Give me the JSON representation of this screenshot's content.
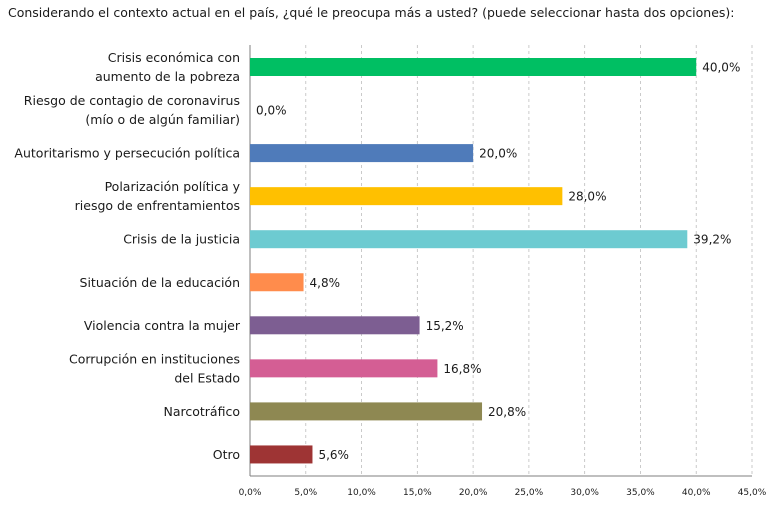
{
  "chart_data": {
    "type": "bar",
    "orientation": "horizontal",
    "title": "Considerando el contexto actual en el país, ¿qué le preocupa más a usted? (puede seleccionar hasta dos opciones):",
    "categories": [
      [
        "Crisis económica con",
        "aumento de la pobreza"
      ],
      [
        "Riesgo de contagio de coronavirus",
        "(mío o de algún familiar)"
      ],
      [
        "Autoritarismo y persecución política"
      ],
      [
        "Polarización política y",
        "riesgo de enfrentamientos"
      ],
      [
        "Crisis de la justicia"
      ],
      [
        "Situación de la educación"
      ],
      [
        "Violencia contra la mujer"
      ],
      [
        "Corrupción en instituciones",
        "del Estado"
      ],
      [
        "Narcotráfico"
      ],
      [
        "Otro"
      ]
    ],
    "values": [
      40.0,
      0.0,
      20.0,
      28.0,
      39.2,
      4.8,
      15.2,
      16.8,
      20.8,
      5.6
    ],
    "value_labels": [
      "40,0%",
      "0,0%",
      "20,0%",
      "28,0%",
      "39,2%",
      "4,8%",
      "15,2%",
      "16,8%",
      "20,8%",
      "5,6%"
    ],
    "colors": [
      "#00BF63",
      "#000000",
      "#4F7BBA",
      "#FFC000",
      "#6DCBD1",
      "#FF8C4C",
      "#7D5E92",
      "#D45E94",
      "#8E8852",
      "#9E3434"
    ],
    "xlim": [
      0,
      45
    ],
    "x_ticks": [
      "0,0%",
      "5,0%",
      "10,0%",
      "15,0%",
      "20,0%",
      "25,0%",
      "30,0%",
      "35,0%",
      "40,0%",
      "45,0%"
    ],
    "grid": "vertical-dashed",
    "legend": "none"
  }
}
